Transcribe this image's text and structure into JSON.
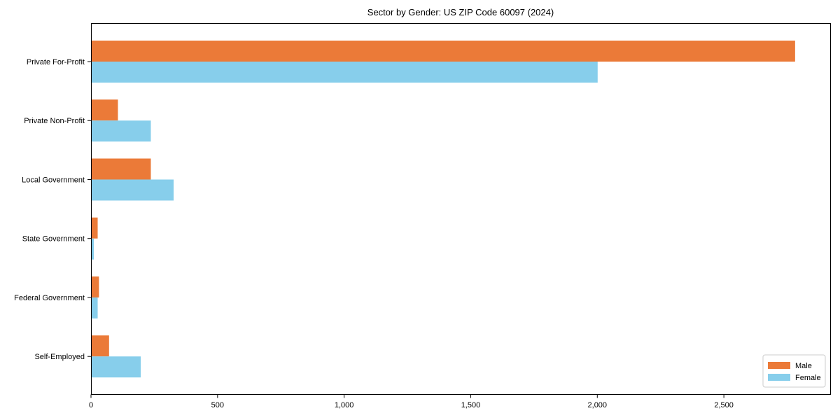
{
  "figure": {
    "background": "#ffffff",
    "spine_color": "#000000",
    "legend_border_color": "#cccccc",
    "legend_background": "#ffffff"
  },
  "chart_data": {
    "type": "bar",
    "orientation": "horizontal",
    "title": "Sector by Gender: US ZIP Code 60097 (2024)",
    "categories": [
      "Private For-Profit",
      "Private Non-Profit",
      "Local Government",
      "State Government",
      "Federal Government",
      "Self-Employed"
    ],
    "series": [
      {
        "name": "Male",
        "color": "#EB7A38",
        "values": [
          2780,
          105,
          235,
          25,
          30,
          70
        ]
      },
      {
        "name": "Female",
        "color": "#87CEEB",
        "values": [
          2000,
          235,
          325,
          10,
          25,
          195
        ]
      }
    ],
    "xlabel": "",
    "ylabel": "",
    "xlim": [
      0,
      2920
    ],
    "xticks": [
      0,
      500,
      1000,
      1500,
      2000,
      2500
    ],
    "xtick_labels": [
      "0",
      "500",
      "1,000",
      "1,500",
      "2,000",
      "2,500"
    ],
    "grid": false,
    "legend": {
      "position": "lower right"
    }
  }
}
